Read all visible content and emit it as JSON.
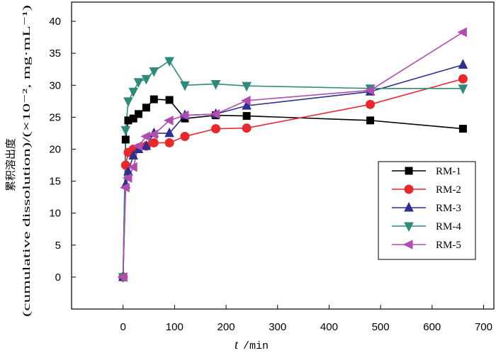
{
  "chart_data": {
    "type": "line",
    "xlabel_italic": "t",
    "xlabel_rest": "/min",
    "ylabel_line1": "累积溶出度",
    "ylabel_line2": "(cumulative dissolution)/(×10⁻², mg·mL⁻¹)",
    "xlim": [
      -100,
      720
    ],
    "ylim": [
      -5,
      43
    ],
    "xticks": [
      0,
      100,
      200,
      300,
      400,
      500,
      600,
      700
    ],
    "yticks": [
      0,
      5,
      10,
      15,
      20,
      25,
      30,
      35,
      40
    ],
    "legend_position": "right-center",
    "series": [
      {
        "name": "RM-1",
        "color": "#000000",
        "marker": "square",
        "x": [
          0,
          5,
          10,
          20,
          30,
          45,
          60,
          90,
          120,
          180,
          240,
          480,
          660
        ],
        "y": [
          0,
          21.5,
          24.5,
          24.8,
          25.5,
          26.5,
          27.8,
          27.7,
          24.8,
          25.3,
          25.2,
          24.5,
          23.2
        ]
      },
      {
        "name": "RM-2",
        "color": "#e8282b",
        "marker": "circle",
        "x": [
          0,
          5,
          10,
          20,
          30,
          45,
          60,
          90,
          120,
          180,
          240,
          480,
          660
        ],
        "y": [
          0,
          17.5,
          19.5,
          20,
          20.2,
          20.5,
          21,
          21,
          22,
          23.2,
          23.3,
          27,
          31
        ]
      },
      {
        "name": "RM-3",
        "color": "#2f2f8f",
        "marker": "triangle-up",
        "x": [
          0,
          5,
          10,
          20,
          30,
          45,
          60,
          90,
          120,
          180,
          240,
          480,
          660
        ],
        "y": [
          0,
          14.5,
          16.5,
          19,
          20,
          20.5,
          22.5,
          22.5,
          25.3,
          25.5,
          26.8,
          29,
          33.2
        ]
      },
      {
        "name": "RM-4",
        "color": "#2e8b7a",
        "marker": "triangle-down",
        "x": [
          0,
          5,
          10,
          20,
          30,
          45,
          60,
          90,
          120,
          180,
          240,
          480,
          660
        ],
        "y": [
          0,
          23,
          27.5,
          29,
          30.5,
          31,
          32.2,
          33.8,
          30,
          30.2,
          29.9,
          29.5,
          29.5
        ]
      },
      {
        "name": "RM-5",
        "color": "#b24cb0",
        "marker": "triangle-left",
        "x": [
          0,
          5,
          10,
          20,
          30,
          45,
          60,
          90,
          120,
          180,
          240,
          480,
          660
        ],
        "y": [
          0,
          14,
          15.5,
          17.2,
          20.5,
          22,
          22.3,
          24.5,
          25.3,
          25.5,
          27.6,
          29.2,
          38.3
        ]
      }
    ]
  }
}
